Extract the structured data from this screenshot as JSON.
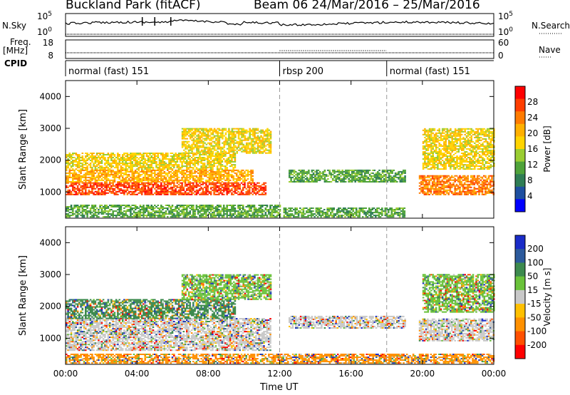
{
  "header": {
    "title": "Buckland Park (fitACF)",
    "beam_and_dates": "Beam 06  24/Mar/2016 – 25/Mar/2016"
  },
  "strip_panels": {
    "nsky_label": "N.Sky",
    "nsky_ticks": [
      "10^5",
      "10^0"
    ],
    "nsearch_label": "N.Search",
    "nsearch_ticks": [
      "10^5",
      "10^0"
    ],
    "freq_label_line1": "Freq.",
    "freq_label_line2": "[MHz]",
    "freq_ticks": [
      "18",
      "8"
    ],
    "nave_label": "Nave",
    "nave_ticks": [
      "60",
      "0"
    ],
    "cpid_label": "CPID",
    "modes": [
      {
        "name": "normal (fast) 151",
        "start_hour": 0
      },
      {
        "name": "rbsp 200",
        "start_hour": 12
      },
      {
        "name": "normal (fast) 151",
        "start_hour": 18
      }
    ]
  },
  "time_axis": {
    "label": "Time UT",
    "ticks": [
      "00:00",
      "04:00",
      "08:00",
      "12:00",
      "16:00",
      "20:00",
      "00:00"
    ]
  },
  "chart_data": [
    {
      "type": "heatmap",
      "name": "power",
      "ylabel": "Slant Range [km]",
      "yticks": [
        1000,
        2000,
        3000,
        4000
      ],
      "ylim": [
        180,
        4500
      ],
      "xlim_hours": [
        0,
        24
      ],
      "colorbar": {
        "label": "Power [dB]",
        "ticks": [
          4,
          8,
          12,
          16,
          20,
          24,
          28
        ],
        "range": [
          0,
          32
        ],
        "colors": [
          "#0000ff",
          "#1e4fa0",
          "#2f7d55",
          "#4fa33a",
          "#9acd32",
          "#ffd400",
          "#ffb000",
          "#ff7b00",
          "#ff3d00",
          "#ff0000"
        ]
      },
      "regions": [
        {
          "t0": 0,
          "t1": 11.2,
          "r0": 900,
          "r1": 1300,
          "level": 29
        },
        {
          "t0": 0,
          "t1": 10.5,
          "r0": 1300,
          "r1": 1700,
          "level": 22
        },
        {
          "t0": 0,
          "t1": 9.5,
          "r0": 1700,
          "r1": 2200,
          "level": 19
        },
        {
          "t0": 6.5,
          "t1": 11.5,
          "r0": 2200,
          "r1": 3000,
          "level": 18
        },
        {
          "t0": 0,
          "t1": 12,
          "r0": 200,
          "r1": 600,
          "level": 12
        },
        {
          "t0": 12.2,
          "t1": 19,
          "r0": 200,
          "r1": 500,
          "level": 9
        },
        {
          "t0": 12.5,
          "t1": 19,
          "r0": 1300,
          "r1": 1700,
          "level": 11
        },
        {
          "t0": 19.8,
          "t1": 24,
          "r0": 900,
          "r1": 1500,
          "level": 26
        },
        {
          "t0": 20,
          "t1": 24,
          "r0": 1700,
          "r1": 3000,
          "level": 17
        }
      ]
    },
    {
      "type": "heatmap",
      "name": "velocity",
      "ylabel": "Slant Range [km]",
      "yticks": [
        1000,
        2000,
        3000,
        4000
      ],
      "ylim": [
        180,
        4500
      ],
      "xlim_hours": [
        0,
        24
      ],
      "colorbar": {
        "label": "Velocity [m s^-1]",
        "ticks": [
          200,
          100,
          50,
          15,
          -15,
          -50,
          -100,
          -200
        ],
        "colors": [
          "#1a2cc8",
          "#2c5a9c",
          "#3d8a4e",
          "#6ac23a",
          "#c8c8c8",
          "#ffc000",
          "#ff9000",
          "#ff5000",
          "#ff0000"
        ]
      },
      "regions": [
        {
          "t0": 0,
          "t1": 11.5,
          "r0": 600,
          "r1": 1600,
          "level": 0
        },
        {
          "t0": 0,
          "t1": 9.5,
          "r0": 1600,
          "r1": 2200,
          "level": 60
        },
        {
          "t0": 6.5,
          "t1": 11.5,
          "r0": 2200,
          "r1": 3000,
          "level": 30
        },
        {
          "t0": 12.5,
          "t1": 19,
          "r0": 1300,
          "r1": 1700,
          "level": 0
        },
        {
          "t0": 0,
          "t1": 24,
          "r0": 200,
          "r1": 500,
          "level": -60
        },
        {
          "t0": 19.8,
          "t1": 24,
          "r0": 900,
          "r1": 1600,
          "level": 0
        },
        {
          "t0": 20,
          "t1": 24,
          "r0": 1800,
          "r1": 3000,
          "level": 40
        }
      ]
    }
  ]
}
